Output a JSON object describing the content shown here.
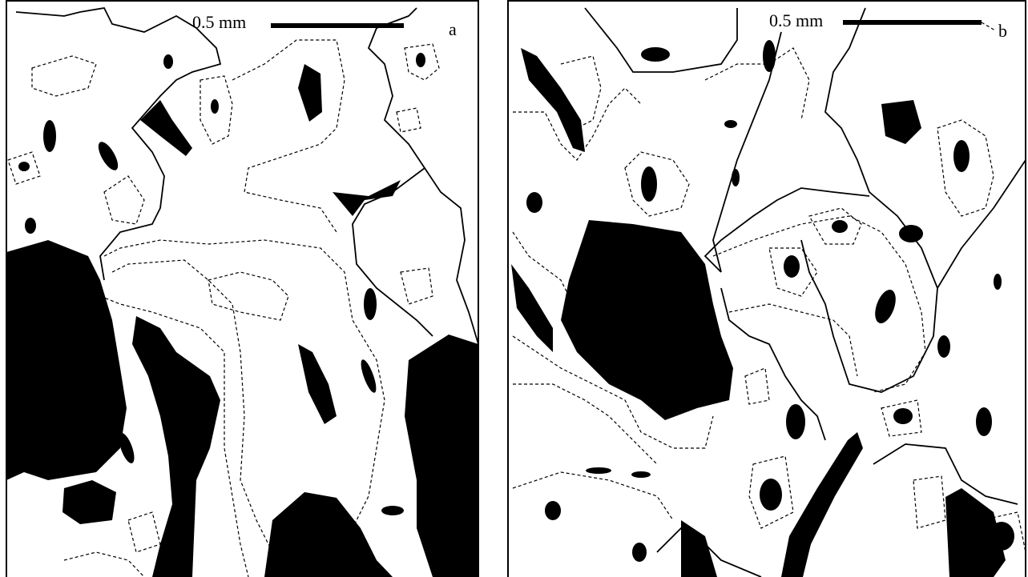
{
  "panels": [
    {
      "label": "a",
      "scale_bar": "0.5 mm"
    },
    {
      "label": "b",
      "scale_bar": "0.5 mm"
    }
  ]
}
